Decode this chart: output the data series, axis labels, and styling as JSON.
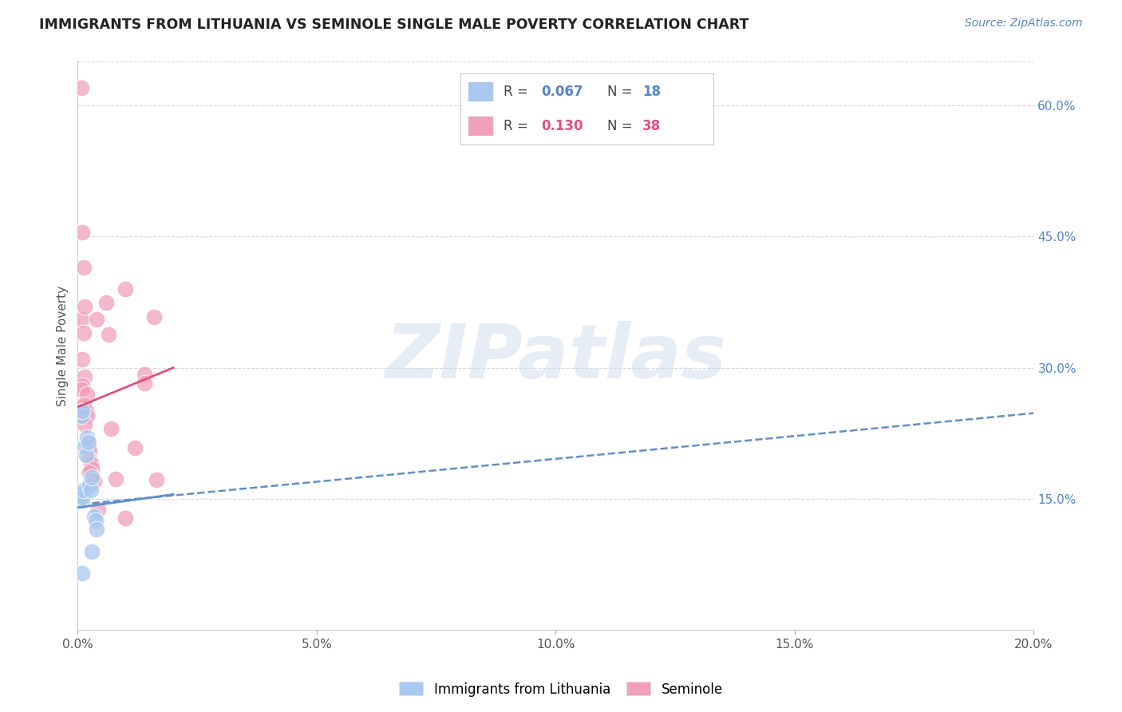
{
  "title": "IMMIGRANTS FROM LITHUANIA VS SEMINOLE SINGLE MALE POVERTY CORRELATION CHART",
  "source": "Source: ZipAtlas.com",
  "ylabel": "Single Male Poverty",
  "xlim": [
    0.0,
    0.2
  ],
  "ylim": [
    0.0,
    0.65
  ],
  "xtick_labels": [
    "0.0%",
    "5.0%",
    "10.0%",
    "15.0%",
    "20.0%"
  ],
  "xtick_vals": [
    0.0,
    0.05,
    0.1,
    0.15,
    0.2
  ],
  "ytick_labels_right": [
    "15.0%",
    "30.0%",
    "45.0%",
    "60.0%"
  ],
  "ytick_vals": [
    0.15,
    0.3,
    0.45,
    0.6
  ],
  "legend1_R": "0.067",
  "legend1_N": "18",
  "legend2_R": "0.130",
  "legend2_N": "38",
  "legend1_label": "Immigrants from Lithuania",
  "legend2_label": "Seminole",
  "blue_color": "#a8c8f0",
  "pink_color": "#f0a0b8",
  "blue_line_color": "#6090c8",
  "pink_line_color": "#e05080",
  "blue_scatter": [
    [
      0.0008,
      0.155
    ],
    [
      0.001,
      0.148
    ],
    [
      0.001,
      0.152
    ],
    [
      0.0012,
      0.16
    ],
    [
      0.0008,
      0.245
    ],
    [
      0.001,
      0.25
    ],
    [
      0.0015,
      0.21
    ],
    [
      0.0018,
      0.2
    ],
    [
      0.002,
      0.22
    ],
    [
      0.0022,
      0.215
    ],
    [
      0.0025,
      0.165
    ],
    [
      0.0028,
      0.16
    ],
    [
      0.003,
      0.175
    ],
    [
      0.0035,
      0.13
    ],
    [
      0.0038,
      0.125
    ],
    [
      0.004,
      0.115
    ],
    [
      0.001,
      0.065
    ],
    [
      0.003,
      0.09
    ]
  ],
  "pink_scatter": [
    [
      0.0008,
      0.62
    ],
    [
      0.001,
      0.455
    ],
    [
      0.0012,
      0.415
    ],
    [
      0.0008,
      0.355
    ],
    [
      0.0015,
      0.37
    ],
    [
      0.0012,
      0.34
    ],
    [
      0.001,
      0.31
    ],
    [
      0.0015,
      0.29
    ],
    [
      0.001,
      0.28
    ],
    [
      0.0008,
      0.275
    ],
    [
      0.002,
      0.27
    ],
    [
      0.0008,
      0.255
    ],
    [
      0.0012,
      0.258
    ],
    [
      0.0018,
      0.25
    ],
    [
      0.002,
      0.245
    ],
    [
      0.0015,
      0.235
    ],
    [
      0.002,
      0.215
    ],
    [
      0.0022,
      0.21
    ],
    [
      0.0025,
      0.205
    ],
    [
      0.0025,
      0.195
    ],
    [
      0.0028,
      0.19
    ],
    [
      0.003,
      0.185
    ],
    [
      0.0025,
      0.18
    ],
    [
      0.003,
      0.172
    ],
    [
      0.0035,
      0.17
    ],
    [
      0.004,
      0.355
    ],
    [
      0.0042,
      0.138
    ],
    [
      0.006,
      0.375
    ],
    [
      0.0065,
      0.338
    ],
    [
      0.007,
      0.23
    ],
    [
      0.008,
      0.173
    ],
    [
      0.01,
      0.39
    ],
    [
      0.01,
      0.128
    ],
    [
      0.012,
      0.208
    ],
    [
      0.014,
      0.292
    ],
    [
      0.014,
      0.282
    ],
    [
      0.016,
      0.358
    ],
    [
      0.0165,
      0.172
    ]
  ],
  "blue_trend": [
    0.0,
    0.02,
    0.14,
    0.155
  ],
  "pink_trend": [
    0.0,
    0.02,
    0.255,
    0.3
  ],
  "blue_trend_ext": [
    0.003,
    0.2,
    0.145,
    0.248
  ],
  "watermark": "ZIPatlas",
  "background_color": "#ffffff",
  "grid_color": "#d8d8d8"
}
